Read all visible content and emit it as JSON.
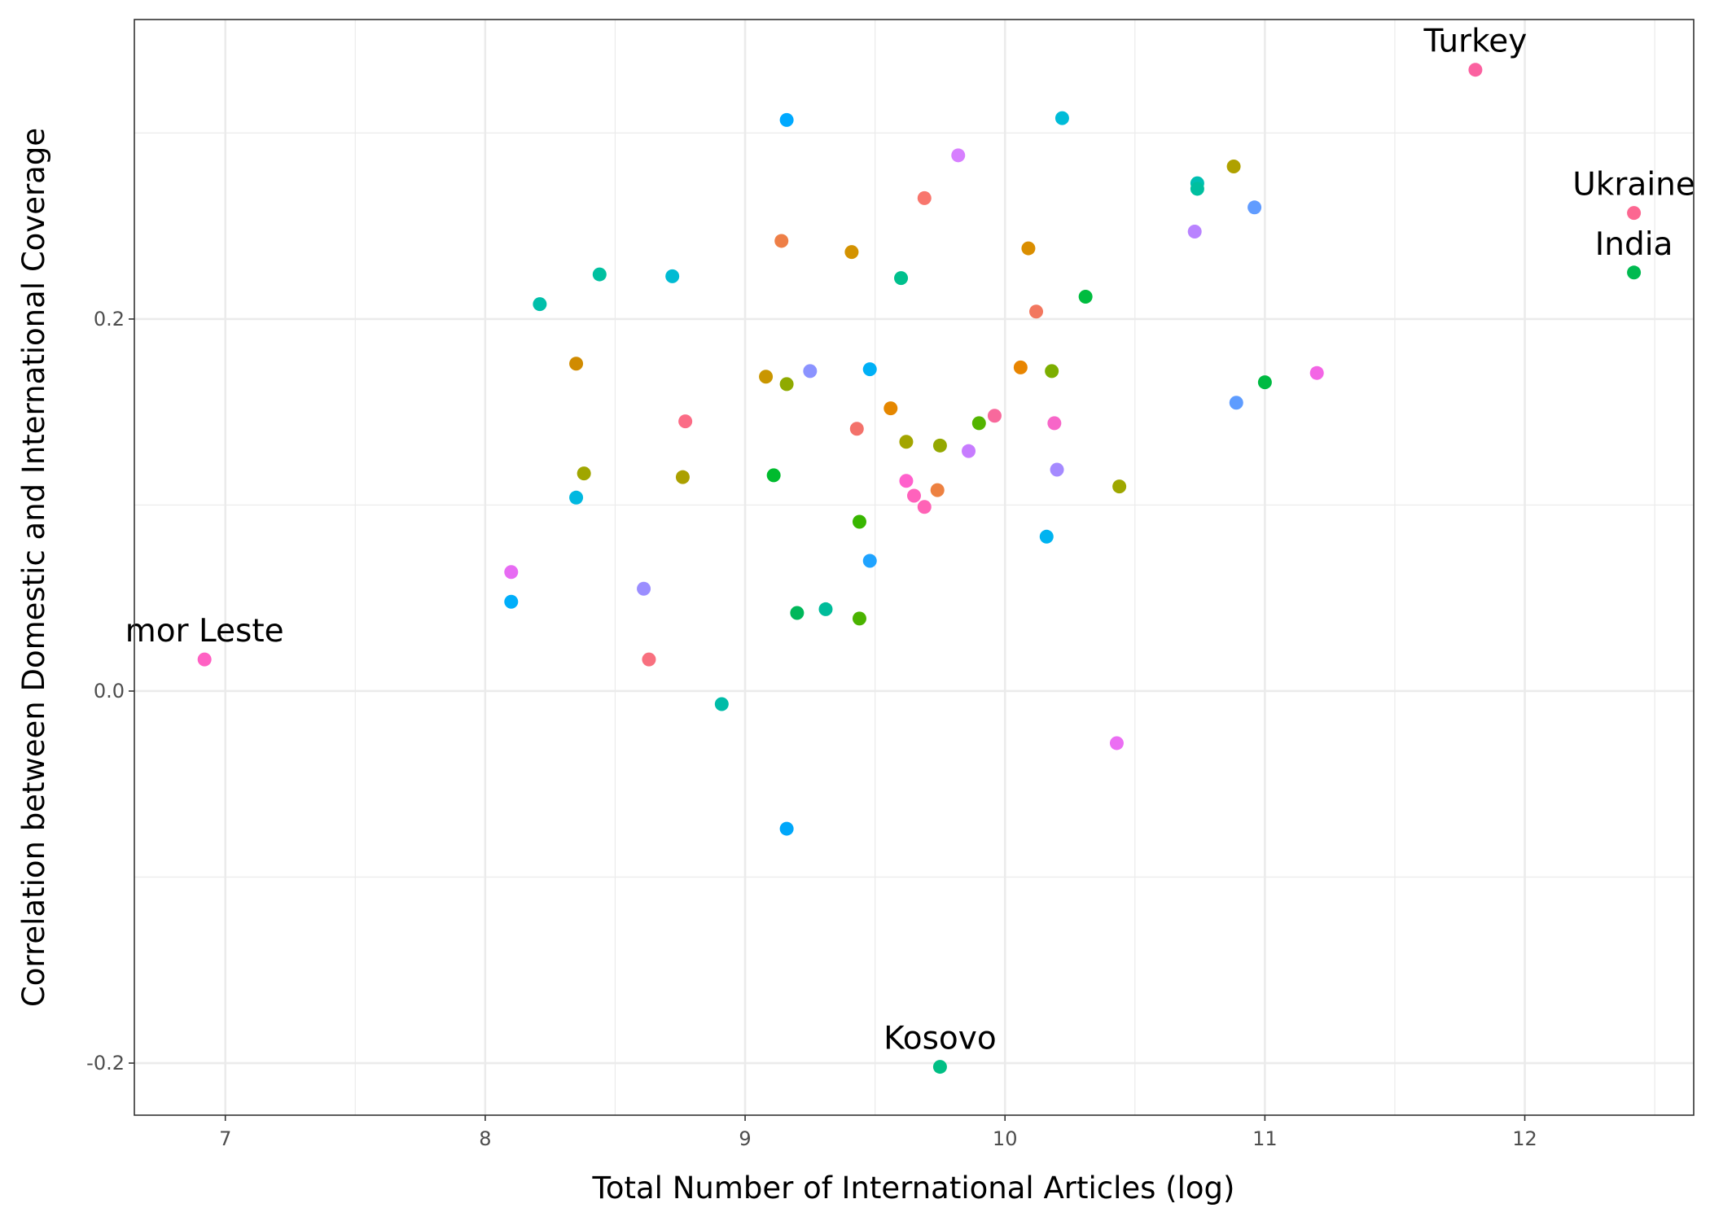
{
  "chart_data": {
    "type": "scatter",
    "title": "",
    "xlabel": "Total Number of International Articles (log)",
    "ylabel": "Correlation between Domestic and International Coverage",
    "xlim": [
      6.65,
      12.65
    ],
    "ylim": [
      -0.228,
      0.361
    ],
    "x_ticks": [
      7,
      8,
      9,
      10,
      11,
      12
    ],
    "x_tick_labels": [
      "7",
      "8",
      "9",
      "10",
      "11",
      "12"
    ],
    "y_ticks": [
      -0.2,
      0.0,
      0.2
    ],
    "y_tick_labels": [
      "-0.2",
      "0.0",
      "0.2"
    ],
    "grid": true,
    "legend": "none",
    "labels": [
      {
        "text": "Turkey",
        "x": 11.81,
        "y": 0.334
      },
      {
        "text": "Ukraine",
        "x": 12.42,
        "y": 0.257
      },
      {
        "text": "India",
        "x": 12.42,
        "y": 0.225
      },
      {
        "text": "mor Leste",
        "x": 6.92,
        "y": 0.017
      },
      {
        "text": "Kosovo",
        "x": 9.75,
        "y": -0.202
      }
    ],
    "points": [
      {
        "x": 11.81,
        "y": 0.334,
        "color": "#FB61A0"
      },
      {
        "x": 12.42,
        "y": 0.257,
        "color": "#FC6791"
      },
      {
        "x": 12.42,
        "y": 0.225,
        "color": "#00BA50"
      },
      {
        "x": 6.92,
        "y": 0.017,
        "color": "#FF61C3"
      },
      {
        "x": 9.75,
        "y": -0.202,
        "color": "#00BF84"
      },
      {
        "x": 9.16,
        "y": 0.307,
        "color": "#00A9FF"
      },
      {
        "x": 10.22,
        "y": 0.308,
        "color": "#00BCD8"
      },
      {
        "x": 9.82,
        "y": 0.288,
        "color": "#D77FFF"
      },
      {
        "x": 9.69,
        "y": 0.265,
        "color": "#F8766D"
      },
      {
        "x": 10.88,
        "y": 0.282,
        "color": "#AFA100"
      },
      {
        "x": 10.74,
        "y": 0.273,
        "color": "#00BFB2"
      },
      {
        "x": 10.74,
        "y": 0.27,
        "color": "#00BF9F"
      },
      {
        "x": 10.96,
        "y": 0.26,
        "color": "#619CFF"
      },
      {
        "x": 10.73,
        "y": 0.247,
        "color": "#B983FF"
      },
      {
        "x": 9.14,
        "y": 0.242,
        "color": "#EE7F47"
      },
      {
        "x": 9.41,
        "y": 0.236,
        "color": "#D39200"
      },
      {
        "x": 10.09,
        "y": 0.238,
        "color": "#DA8E00"
      },
      {
        "x": 8.44,
        "y": 0.224,
        "color": "#00C0A0"
      },
      {
        "x": 8.72,
        "y": 0.223,
        "color": "#00BBD3"
      },
      {
        "x": 9.6,
        "y": 0.222,
        "color": "#00C08D"
      },
      {
        "x": 8.21,
        "y": 0.208,
        "color": "#00BFAA"
      },
      {
        "x": 10.31,
        "y": 0.212,
        "color": "#00BC3F"
      },
      {
        "x": 10.12,
        "y": 0.204,
        "color": "#F2775F"
      },
      {
        "x": 8.35,
        "y": 0.176,
        "color": "#D08B00"
      },
      {
        "x": 9.08,
        "y": 0.169,
        "color": "#C99600"
      },
      {
        "x": 9.16,
        "y": 0.165,
        "color": "#8FAA00"
      },
      {
        "x": 9.25,
        "y": 0.172,
        "color": "#8B93FF"
      },
      {
        "x": 9.48,
        "y": 0.173,
        "color": "#00B0F6"
      },
      {
        "x": 10.06,
        "y": 0.174,
        "color": "#E88500"
      },
      {
        "x": 10.18,
        "y": 0.172,
        "color": "#7CAE00"
      },
      {
        "x": 11.2,
        "y": 0.171,
        "color": "#F365E5"
      },
      {
        "x": 11.0,
        "y": 0.166,
        "color": "#00BA42"
      },
      {
        "x": 10.89,
        "y": 0.155,
        "color": "#5E9CFF"
      },
      {
        "x": 9.56,
        "y": 0.152,
        "color": "#E58700"
      },
      {
        "x": 9.96,
        "y": 0.148,
        "color": "#F8699C"
      },
      {
        "x": 9.9,
        "y": 0.144,
        "color": "#53B400"
      },
      {
        "x": 10.19,
        "y": 0.144,
        "color": "#F766C8"
      },
      {
        "x": 8.77,
        "y": 0.145,
        "color": "#FB6C86"
      },
      {
        "x": 9.43,
        "y": 0.141,
        "color": "#F3726B"
      },
      {
        "x": 9.62,
        "y": 0.134,
        "color": "#A3A500"
      },
      {
        "x": 9.75,
        "y": 0.132,
        "color": "#94A800"
      },
      {
        "x": 9.86,
        "y": 0.129,
        "color": "#C77CFF"
      },
      {
        "x": 8.38,
        "y": 0.117,
        "color": "#A0A600"
      },
      {
        "x": 8.76,
        "y": 0.115,
        "color": "#ABA000"
      },
      {
        "x": 9.11,
        "y": 0.116,
        "color": "#00BB2E"
      },
      {
        "x": 10.2,
        "y": 0.119,
        "color": "#A58AFF"
      },
      {
        "x": 9.62,
        "y": 0.113,
        "color": "#FF61CC"
      },
      {
        "x": 9.74,
        "y": 0.108,
        "color": "#ED8141"
      },
      {
        "x": 9.65,
        "y": 0.105,
        "color": "#FF62BC"
      },
      {
        "x": 10.44,
        "y": 0.11,
        "color": "#9EA700"
      },
      {
        "x": 8.35,
        "y": 0.104,
        "color": "#00B8E0"
      },
      {
        "x": 9.69,
        "y": 0.099,
        "color": "#FF63B6"
      },
      {
        "x": 9.44,
        "y": 0.091,
        "color": "#38B600"
      },
      {
        "x": 10.16,
        "y": 0.083,
        "color": "#00B3F0"
      },
      {
        "x": 9.48,
        "y": 0.07,
        "color": "#1FA3FF"
      },
      {
        "x": 8.1,
        "y": 0.064,
        "color": "#E76BF3"
      },
      {
        "x": 8.61,
        "y": 0.055,
        "color": "#9B8EFF"
      },
      {
        "x": 8.1,
        "y": 0.048,
        "color": "#00AEFA"
      },
      {
        "x": 9.2,
        "y": 0.042,
        "color": "#00B75A"
      },
      {
        "x": 9.31,
        "y": 0.044,
        "color": "#00BC9A"
      },
      {
        "x": 9.44,
        "y": 0.039,
        "color": "#4AB300"
      },
      {
        "x": 8.63,
        "y": 0.017,
        "color": "#F8707F"
      },
      {
        "x": 8.91,
        "y": -0.007,
        "color": "#00BCA8"
      },
      {
        "x": 10.43,
        "y": -0.028,
        "color": "#EB6EF3"
      },
      {
        "x": 9.16,
        "y": -0.074,
        "color": "#00A7FA"
      }
    ]
  }
}
